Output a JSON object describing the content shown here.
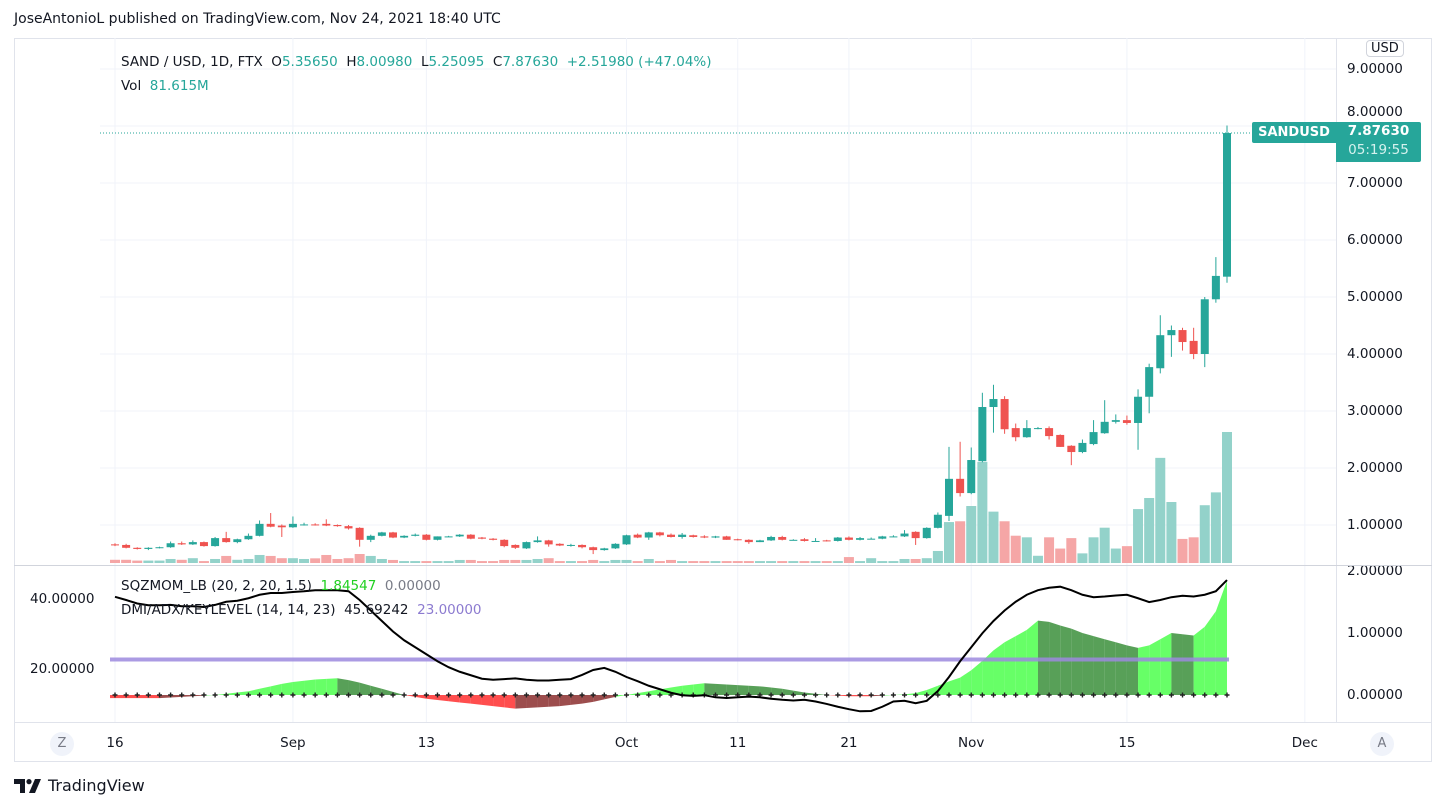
{
  "published": "JoseAntonioL published on TradingView.com, Nov 24, 2021 18:40 UTC",
  "legend": {
    "symbol": "SAND / USD, 1D, FTX",
    "o_label": "O",
    "o": "5.35650",
    "h_label": "H",
    "h": "8.00980",
    "l_label": "L",
    "l": "5.25095",
    "c_label": "C",
    "c": "7.87630",
    "change": "+2.51980 (+47.04%)",
    "vol_label": "Vol",
    "vol": "81.615M"
  },
  "indicators": {
    "sqz_name": "SQZMOM_LB (20, 2, 20, 1.5)",
    "sqz_value": "1.84547",
    "sqz_value2": "0.00000",
    "dmi_name": "DMI/ADX/KEYLEVEL (14, 14, 23)",
    "dmi_value": "45.69242",
    "dmi_key": "23.00000"
  },
  "price_axis": {
    "currency": "USD",
    "ticks": [
      "9.00000",
      "8.00000",
      "7.00000",
      "6.00000",
      "5.00000",
      "4.00000",
      "3.00000",
      "2.00000",
      "1.00000"
    ],
    "badge_symbol": "SANDUSD",
    "badge_price": "7.87630",
    "badge_countdown": "05:19:55"
  },
  "indicator_axis": {
    "left_ticks": [
      "40.00000",
      "20.00000"
    ],
    "right_ticks": [
      "2.00000",
      "1.00000",
      "0.00000"
    ]
  },
  "time_axis": {
    "labels": [
      {
        "text": "16",
        "date": "2021-08-16"
      },
      {
        "text": "Sep",
        "date": "2021-09-01"
      },
      {
        "text": "13",
        "date": "2021-09-13"
      },
      {
        "text": "Oct",
        "date": "2021-10-01"
      },
      {
        "text": "11",
        "date": "2021-10-11"
      },
      {
        "text": "21",
        "date": "2021-10-21"
      },
      {
        "text": "Nov",
        "date": "2021-11-01"
      },
      {
        "text": "15",
        "date": "2021-11-15"
      },
      {
        "text": "Dec",
        "date": "2021-12-01"
      }
    ],
    "zoom_button": "Z",
    "auto_button": "A"
  },
  "brand": "TradingView",
  "colors": {
    "up": "#26a69a",
    "down": "#ef5350",
    "vol_up": "#93d2ca",
    "vol_down": "#f5a6a6",
    "adx": "#000000",
    "key": "#9c8ade",
    "mom_up": "#4cff4c",
    "mom_up_weak": "#3b8f3b",
    "mom_down": "#ff2f2f",
    "mom_down_weak": "#8b2e2e"
  },
  "chart_data": {
    "type": "candlestick",
    "start_date": "2021-08-16",
    "interval": "1D",
    "price_range": [
      0,
      9.6
    ],
    "ohlc": [
      [
        0.66,
        0.68,
        0.63,
        0.65
      ],
      [
        0.65,
        0.67,
        0.59,
        0.6
      ],
      [
        0.6,
        0.61,
        0.57,
        0.58
      ],
      [
        0.58,
        0.61,
        0.56,
        0.6
      ],
      [
        0.6,
        0.62,
        0.59,
        0.61
      ],
      [
        0.61,
        0.71,
        0.6,
        0.68
      ],
      [
        0.68,
        0.71,
        0.65,
        0.66
      ],
      [
        0.66,
        0.73,
        0.65,
        0.7
      ],
      [
        0.7,
        0.71,
        0.62,
        0.63
      ],
      [
        0.63,
        0.79,
        0.62,
        0.77
      ],
      [
        0.77,
        0.88,
        0.69,
        0.7
      ],
      [
        0.7,
        0.76,
        0.68,
        0.75
      ],
      [
        0.75,
        0.85,
        0.74,
        0.81
      ],
      [
        0.81,
        1.08,
        0.8,
        1.02
      ],
      [
        1.02,
        1.21,
        0.96,
        0.97
      ],
      [
        0.99,
        1.01,
        0.79,
        0.96
      ],
      [
        0.96,
        1.15,
        0.95,
        1.02
      ],
      [
        1.01,
        1.04,
        0.99,
        1.01
      ],
      [
        1.01,
        1.03,
        0.99,
        1.0
      ],
      [
        1.02,
        1.1,
        0.98,
        0.99
      ],
      [
        1.0,
        1.01,
        0.97,
        0.98
      ],
      [
        0.98,
        1.0,
        0.92,
        0.94
      ],
      [
        0.95,
        0.96,
        0.62,
        0.74
      ],
      [
        0.74,
        0.83,
        0.7,
        0.81
      ],
      [
        0.81,
        0.88,
        0.8,
        0.87
      ],
      [
        0.87,
        0.88,
        0.77,
        0.78
      ],
      [
        0.78,
        0.82,
        0.77,
        0.81
      ],
      [
        0.81,
        0.85,
        0.8,
        0.83
      ],
      [
        0.83,
        0.84,
        0.73,
        0.74
      ],
      [
        0.74,
        0.8,
        0.73,
        0.8
      ],
      [
        0.8,
        0.81,
        0.79,
        0.8
      ],
      [
        0.8,
        0.84,
        0.79,
        0.83
      ],
      [
        0.83,
        0.84,
        0.75,
        0.76
      ],
      [
        0.78,
        0.79,
        0.75,
        0.76
      ],
      [
        0.76,
        0.77,
        0.73,
        0.74
      ],
      [
        0.74,
        0.75,
        0.61,
        0.63
      ],
      [
        0.65,
        0.66,
        0.58,
        0.6
      ],
      [
        0.59,
        0.71,
        0.58,
        0.7
      ],
      [
        0.7,
        0.8,
        0.69,
        0.73
      ],
      [
        0.73,
        0.74,
        0.62,
        0.66
      ],
      [
        0.67,
        0.68,
        0.63,
        0.64
      ],
      [
        0.65,
        0.67,
        0.62,
        0.65
      ],
      [
        0.65,
        0.66,
        0.59,
        0.61
      ],
      [
        0.61,
        0.62,
        0.49,
        0.56
      ],
      [
        0.56,
        0.6,
        0.55,
        0.59
      ],
      [
        0.59,
        0.68,
        0.58,
        0.67
      ],
      [
        0.66,
        0.83,
        0.65,
        0.82
      ],
      [
        0.83,
        0.85,
        0.77,
        0.78
      ],
      [
        0.78,
        0.88,
        0.74,
        0.87
      ],
      [
        0.87,
        0.88,
        0.8,
        0.82
      ],
      [
        0.83,
        0.85,
        0.78,
        0.79
      ],
      [
        0.79,
        0.86,
        0.76,
        0.83
      ],
      [
        0.82,
        0.83,
        0.78,
        0.79
      ],
      [
        0.8,
        0.82,
        0.77,
        0.78
      ],
      [
        0.78,
        0.81,
        0.77,
        0.8
      ],
      [
        0.8,
        0.81,
        0.74,
        0.74
      ],
      [
        0.75,
        0.76,
        0.73,
        0.74
      ],
      [
        0.74,
        0.75,
        0.67,
        0.7
      ],
      [
        0.7,
        0.74,
        0.7,
        0.73
      ],
      [
        0.73,
        0.81,
        0.72,
        0.79
      ],
      [
        0.79,
        0.81,
        0.73,
        0.74
      ],
      [
        0.74,
        0.75,
        0.73,
        0.74
      ],
      [
        0.75,
        0.77,
        0.71,
        0.72
      ],
      [
        0.72,
        0.77,
        0.71,
        0.72
      ],
      [
        0.73,
        0.74,
        0.71,
        0.72
      ],
      [
        0.72,
        0.79,
        0.71,
        0.78
      ],
      [
        0.78,
        0.8,
        0.73,
        0.74
      ],
      [
        0.74,
        0.79,
        0.73,
        0.77
      ],
      [
        0.76,
        0.78,
        0.75,
        0.76
      ],
      [
        0.76,
        0.81,
        0.75,
        0.8
      ],
      [
        0.8,
        0.82,
        0.79,
        0.8
      ],
      [
        0.8,
        0.91,
        0.79,
        0.85
      ],
      [
        0.88,
        0.89,
        0.65,
        0.77
      ],
      [
        0.77,
        0.96,
        0.76,
        0.95
      ],
      [
        0.95,
        1.22,
        0.94,
        1.18
      ],
      [
        1.16,
        2.37,
        1.07,
        1.81
      ],
      [
        1.81,
        2.46,
        1.5,
        1.56
      ],
      [
        1.56,
        2.36,
        1.54,
        2.14
      ],
      [
        2.12,
        3.32,
        2.1,
        3.07
      ],
      [
        3.07,
        3.46,
        2.62,
        3.21
      ],
      [
        3.21,
        3.26,
        2.6,
        2.68
      ],
      [
        2.7,
        2.78,
        2.47,
        2.54
      ],
      [
        2.54,
        2.84,
        2.53,
        2.7
      ],
      [
        2.7,
        2.72,
        2.68,
        2.7
      ],
      [
        2.7,
        2.73,
        2.5,
        2.56
      ],
      [
        2.58,
        2.59,
        2.37,
        2.37
      ],
      [
        2.39,
        2.4,
        2.05,
        2.28
      ],
      [
        2.28,
        2.5,
        2.26,
        2.44
      ],
      [
        2.42,
        2.84,
        2.4,
        2.63
      ],
      [
        2.61,
        3.19,
        2.6,
        2.81
      ],
      [
        2.81,
        2.94,
        2.78,
        2.84
      ],
      [
        2.84,
        2.92,
        2.76,
        2.79
      ],
      [
        2.79,
        3.38,
        2.32,
        3.25
      ],
      [
        3.25,
        3.83,
        2.96,
        3.77
      ],
      [
        3.75,
        4.68,
        3.66,
        4.33
      ],
      [
        4.33,
        4.5,
        3.95,
        4.42
      ],
      [
        4.42,
        4.46,
        4.06,
        4.21
      ],
      [
        4.23,
        4.46,
        3.91,
        4.0
      ],
      [
        4.0,
        5.0,
        3.77,
        4.96
      ],
      [
        4.96,
        5.7,
        4.9,
        5.37
      ],
      [
        5.3565,
        8.0098,
        5.25095,
        7.8763
      ]
    ],
    "volume_millions": [
      2,
      2,
      1.5,
      1.5,
      1.5,
      2.5,
      2,
      3,
      1.2,
      2.5,
      4.4,
      2,
      2.5,
      5,
      4.4,
      3,
      3,
      2.5,
      2.9,
      5,
      2.5,
      3,
      5.6,
      4.4,
      2.5,
      1.9,
      1.2,
      1.2,
      1.2,
      1.2,
      1.2,
      1.9,
      1.9,
      1.2,
      1.2,
      1.9,
      1.9,
      1.9,
      2.5,
      3,
      1.2,
      1.2,
      1.2,
      1.9,
      1.2,
      1.9,
      1.9,
      1.2,
      2.5,
      1.2,
      1.9,
      1.2,
      1.2,
      1.2,
      1.2,
      1.2,
      1.2,
      1.2,
      1.2,
      1.2,
      1.2,
      1.2,
      1.2,
      1.2,
      1.2,
      1.2,
      3.7,
      1.2,
      3,
      1.2,
      1.2,
      2.5,
      2.5,
      3,
      7.5,
      25.5,
      26,
      35.5,
      63,
      32,
      26,
      17,
      16,
      4.5,
      16,
      9,
      15.5,
      6,
      16,
      22,
      9,
      10.5,
      33.6,
      40.5,
      65.5,
      38,
      15,
      16,
      36,
      44,
      81.615
    ],
    "sqzmom": [
      -0.05,
      -0.05,
      -0.05,
      -0.05,
      -0.05,
      -0.04,
      -0.03,
      -0.02,
      -0.01,
      0.0,
      0.02,
      0.04,
      0.06,
      0.1,
      0.14,
      0.18,
      0.21,
      0.23,
      0.25,
      0.26,
      0.27,
      0.24,
      0.2,
      0.15,
      0.1,
      0.05,
      0.0,
      -0.03,
      -0.06,
      -0.08,
      -0.1,
      -0.12,
      -0.14,
      -0.16,
      -0.18,
      -0.2,
      -0.22,
      -0.21,
      -0.2,
      -0.19,
      -0.18,
      -0.16,
      -0.14,
      -0.11,
      -0.07,
      -0.03,
      0.0,
      0.03,
      0.06,
      0.09,
      0.12,
      0.15,
      0.17,
      0.19,
      0.18,
      0.17,
      0.16,
      0.15,
      0.14,
      0.12,
      0.1,
      0.07,
      0.04,
      0.02,
      0.0,
      -0.01,
      -0.02,
      -0.02,
      -0.02,
      -0.01,
      0.0,
      0.01,
      0.03,
      0.08,
      0.15,
      0.22,
      0.28,
      0.4,
      0.55,
      0.72,
      0.85,
      0.95,
      1.05,
      1.2,
      1.18,
      1.12,
      1.07,
      1.0,
      0.95,
      0.9,
      0.85,
      0.8,
      0.76,
      0.8,
      0.9,
      1.0,
      0.98,
      0.96,
      1.1,
      1.35,
      1.84547
    ],
    "adx": [
      40.9,
      40,
      39,
      38.5,
      38.5,
      38.6,
      38.2,
      38.2,
      38,
      38.6,
      39.5,
      39.8,
      40.5,
      41.5,
      42,
      42,
      42.3,
      42.5,
      42.8,
      42.8,
      42.8,
      42.5,
      40,
      37,
      34,
      31,
      28.5,
      26.5,
      24.5,
      22.5,
      20.8,
      19.5,
      18.5,
      17.5,
      17.2,
      17.4,
      17.6,
      17.2,
      17,
      17,
      17.2,
      17.4,
      18.6,
      20,
      20.6,
      19.5,
      18,
      16.8,
      15.5,
      14.5,
      13.5,
      12.8,
      12.6,
      12.8,
      12.2,
      12,
      12.2,
      12.4,
      12.2,
      11.8,
      11.5,
      11.3,
      11.5,
      11,
      10.3,
      9.5,
      8.8,
      8.2,
      8.3,
      9.5,
      11,
      11.2,
      10.5,
      11.2,
      14,
      18,
      22.5,
      26.5,
      30.5,
      34,
      37,
      39.5,
      41.5,
      42.8,
      43.5,
      43.8,
      42.8,
      41.5,
      40.8,
      41,
      41.3,
      41.5,
      40.5,
      39.4,
      40,
      40.8,
      41.2,
      41,
      41.5,
      42.5,
      45.69242
    ],
    "key_level": 23,
    "adx_range": [
      0,
      50
    ],
    "sqzmom_range": [
      -0.7,
      2.1
    ],
    "grid": true
  }
}
